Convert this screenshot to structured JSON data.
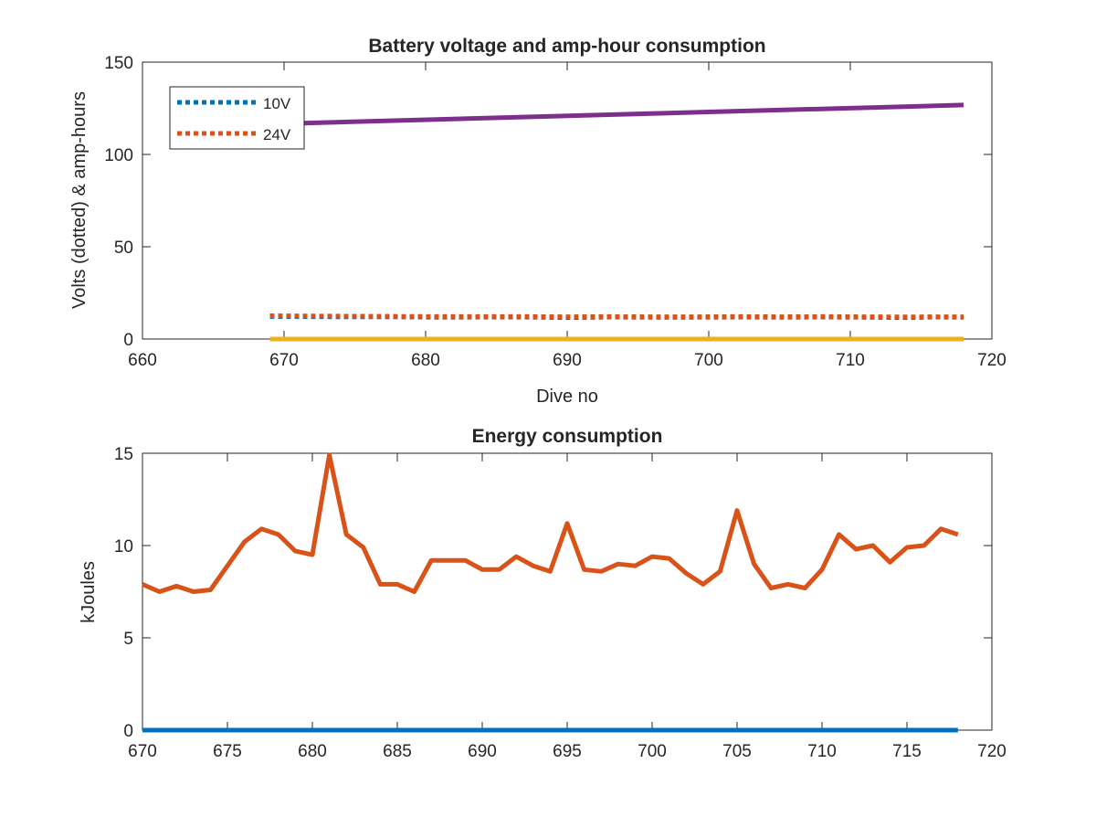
{
  "chart_data": [
    {
      "type": "line",
      "title": "Battery voltage and amp-hour consumption",
      "xlabel": "Dive no",
      "ylabel": "Volts (dotted) & amp-hours",
      "xlim": [
        660,
        720
      ],
      "ylim": [
        0,
        150
      ],
      "xticks": [
        660,
        670,
        680,
        690,
        700,
        710,
        720
      ],
      "yticks": [
        0,
        50,
        100,
        150
      ],
      "legend": {
        "position": "top-left",
        "entries": [
          "10V",
          "24V"
        ]
      },
      "series": [
        {
          "name": "10V",
          "style": "dotted",
          "color": "#0072BD",
          "x": [
            669,
            672,
            675,
            678,
            681,
            684,
            687,
            690,
            693,
            696,
            699,
            702,
            705,
            708,
            711,
            714,
            716,
            718
          ],
          "y": [
            12.2,
            12.1,
            12.0,
            12.0,
            11.8,
            11.9,
            11.9,
            11.6,
            11.9,
            11.8,
            11.8,
            11.9,
            11.8,
            11.9,
            11.8,
            11.6,
            11.9,
            11.8
          ]
        },
        {
          "name": "24V",
          "style": "dotted",
          "color": "#D95319",
          "x": [
            669,
            672,
            675,
            678,
            681,
            684,
            687,
            690,
            693,
            696,
            699,
            702,
            705,
            708,
            711,
            714,
            716,
            718
          ],
          "y": [
            12.6,
            12.5,
            12.4,
            12.3,
            12.2,
            12.2,
            12.2,
            12.1,
            12.2,
            12.1,
            12.1,
            12.2,
            12.1,
            12.2,
            12.1,
            12.0,
            12.1,
            12.1
          ]
        },
        {
          "style": "solid",
          "color": "#7E2F8E",
          "x": [
            669,
            718
          ],
          "y": [
            116.5,
            126.8
          ]
        },
        {
          "style": "solid",
          "color": "#EDB120",
          "x": [
            669,
            718
          ],
          "y": [
            0,
            0
          ]
        }
      ]
    },
    {
      "type": "line",
      "title": "Energy consumption",
      "xlabel": "",
      "ylabel": "kJoules",
      "xlim": [
        670,
        720
      ],
      "ylim": [
        0,
        15
      ],
      "xticks": [
        670,
        675,
        680,
        685,
        690,
        695,
        700,
        705,
        710,
        715,
        720
      ],
      "yticks": [
        0,
        5,
        10,
        15
      ],
      "series": [
        {
          "style": "solid",
          "color": "#D95319",
          "x": [
            670,
            671,
            672,
            673,
            674,
            675,
            676,
            677,
            678,
            679,
            680,
            681,
            682,
            683,
            684,
            685,
            686,
            687,
            688,
            689,
            690,
            691,
            692,
            693,
            694,
            695,
            696,
            697,
            698,
            699,
            700,
            701,
            702,
            703,
            704,
            705,
            706,
            707,
            708,
            709,
            710,
            711,
            712,
            713,
            714,
            715,
            716,
            717,
            718
          ],
          "y": [
            7.9,
            7.5,
            7.8,
            7.5,
            7.6,
            8.9,
            10.2,
            10.9,
            10.6,
            9.7,
            9.5,
            14.9,
            10.6,
            9.9,
            7.9,
            7.9,
            7.5,
            9.2,
            9.2,
            9.2,
            8.7,
            8.7,
            9.4,
            8.9,
            8.6,
            11.2,
            8.7,
            8.6,
            9.0,
            8.9,
            9.4,
            9.3,
            8.5,
            7.9,
            8.6,
            11.9,
            9.0,
            7.7,
            7.9,
            7.7,
            8.7,
            10.6,
            9.8,
            10.0,
            9.1,
            9.9,
            10.0,
            10.9,
            10.6
          ]
        },
        {
          "style": "solid",
          "color": "#0072BD",
          "x": [
            670,
            718
          ],
          "y": [
            0,
            0
          ]
        }
      ]
    }
  ]
}
